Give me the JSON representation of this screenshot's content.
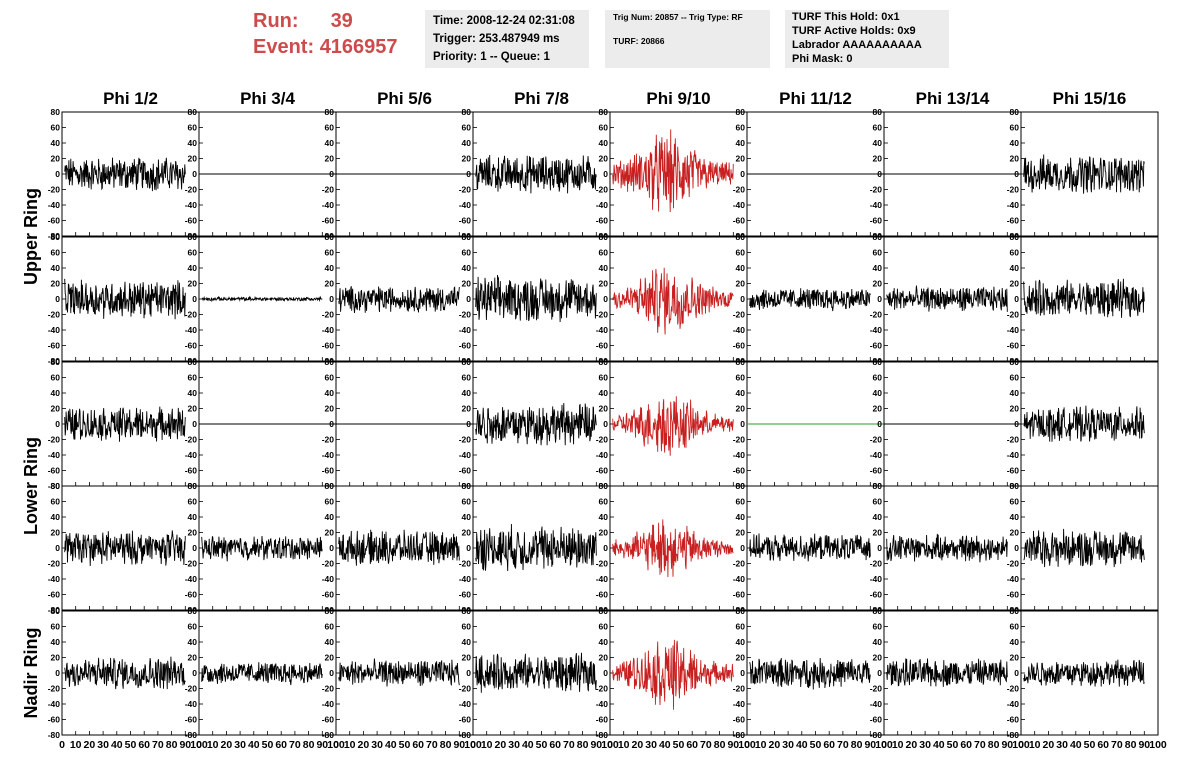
{
  "header": {
    "run_label": "Run:",
    "run_value": "39",
    "event_label": "Event:",
    "event_value": "4166957"
  },
  "info_time": {
    "time": "Time: 2008-12-24 02:31:08",
    "trigger": "Trigger: 253.487949 ms",
    "priority": "Priority: 1 -- Queue: 1"
  },
  "info_trig": {
    "trig_num": "Trig Num: 20857 -- Trig Type: RF",
    "turf": "TURF: 20866"
  },
  "info_turf": {
    "this_hold": "TURF This Hold: 0x1",
    "active_holds": "TURF Active Holds: 0x9",
    "labrador": "Labrador AAAAAAAAAA",
    "phi_mask": "Phi Mask: 0"
  },
  "chart_data": {
    "type": "line",
    "columns": [
      "Phi 1/2",
      "Phi 3/4",
      "Phi 5/6",
      "Phi 7/8",
      "Phi 9/10",
      "Phi 11/12",
      "Phi 13/14",
      "Phi 15/16"
    ],
    "row_groups": [
      {
        "label": "Upper Ring",
        "rows": [
          0,
          1
        ]
      },
      {
        "label": "Lower Ring",
        "rows": [
          2,
          3
        ]
      },
      {
        "label": "Nadir Ring",
        "rows": [
          4
        ]
      }
    ],
    "xlim": [
      0,
      100
    ],
    "ylim": [
      -80,
      80
    ],
    "x_ticks": [
      "0",
      "10",
      "20",
      "30",
      "40",
      "50",
      "60",
      "70",
      "80",
      "90",
      "100"
    ],
    "y_ticks": [
      "80",
      "60",
      "40",
      "20",
      "0",
      "-20",
      "-40",
      "-60",
      "-80"
    ],
    "grid": false,
    "colors": {
      "normal": "#000000",
      "triggered": "#c82020",
      "masked": "#2a9d2a"
    },
    "panels": [
      [
        {
          "color": "normal",
          "amp": 18,
          "env": "flat"
        },
        {
          "color": "normal",
          "amp": 0,
          "env": "flat"
        },
        {
          "color": "normal",
          "amp": 0,
          "env": "flat"
        },
        {
          "color": "normal",
          "amp": 20,
          "env": "flat"
        },
        {
          "color": "triggered",
          "amp": 26,
          "env": "burst"
        },
        {
          "color": "normal",
          "amp": 0,
          "env": "flat"
        },
        {
          "color": "normal",
          "amp": 0,
          "env": "flat"
        },
        {
          "color": "normal",
          "amp": 20,
          "env": "flat"
        }
      ],
      [
        {
          "color": "normal",
          "amp": 20,
          "env": "flat"
        },
        {
          "color": "normal",
          "amp": 2,
          "env": "flat"
        },
        {
          "color": "normal",
          "amp": 14,
          "env": "flat"
        },
        {
          "color": "normal",
          "amp": 24,
          "env": "flat"
        },
        {
          "color": "triggered",
          "amp": 22,
          "env": "burst"
        },
        {
          "color": "normal",
          "amp": 12,
          "env": "flat"
        },
        {
          "color": "normal",
          "amp": 13,
          "env": "flat"
        },
        {
          "color": "normal",
          "amp": 20,
          "env": "flat"
        }
      ],
      [
        {
          "color": "normal",
          "amp": 18,
          "env": "flat"
        },
        {
          "color": "normal",
          "amp": 0,
          "env": "flat"
        },
        {
          "color": "normal",
          "amp": 0,
          "env": "flat"
        },
        {
          "color": "normal",
          "amp": 22,
          "env": "flat"
        },
        {
          "color": "triggered",
          "amp": 20,
          "env": "burst"
        },
        {
          "color": "masked",
          "amp": 0,
          "env": "flat"
        },
        {
          "color": "normal",
          "amp": 0,
          "env": "flat"
        },
        {
          "color": "normal",
          "amp": 18,
          "env": "flat"
        }
      ],
      [
        {
          "color": "normal",
          "amp": 18,
          "env": "flat"
        },
        {
          "color": "normal",
          "amp": 13,
          "env": "flat"
        },
        {
          "color": "normal",
          "amp": 18,
          "env": "flat"
        },
        {
          "color": "normal",
          "amp": 24,
          "env": "flat"
        },
        {
          "color": "triggered",
          "amp": 18,
          "env": "burst"
        },
        {
          "color": "normal",
          "amp": 14,
          "env": "flat"
        },
        {
          "color": "normal",
          "amp": 14,
          "env": "flat"
        },
        {
          "color": "normal",
          "amp": 20,
          "env": "flat"
        }
      ],
      [
        {
          "color": "normal",
          "amp": 17,
          "env": "flat"
        },
        {
          "color": "normal",
          "amp": 12,
          "env": "flat"
        },
        {
          "color": "normal",
          "amp": 14,
          "env": "flat"
        },
        {
          "color": "normal",
          "amp": 20,
          "env": "flat"
        },
        {
          "color": "triggered",
          "amp": 22,
          "env": "burst"
        },
        {
          "color": "normal",
          "amp": 16,
          "env": "flat"
        },
        {
          "color": "normal",
          "amp": 15,
          "env": "flat"
        },
        {
          "color": "normal",
          "amp": 14,
          "env": "flat"
        }
      ]
    ]
  }
}
